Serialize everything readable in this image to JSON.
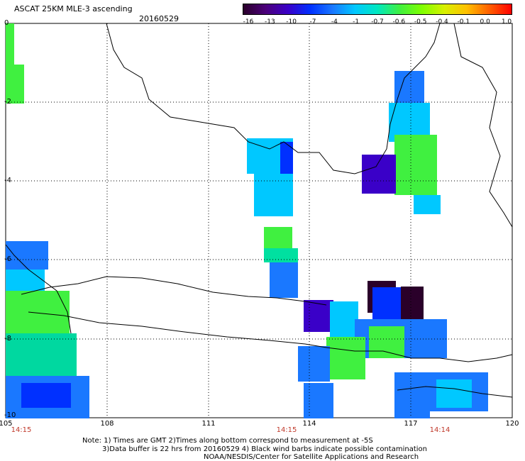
{
  "header": {
    "title": "ASCAT 25KM MLE-3 ascending",
    "date": "20160529"
  },
  "colorbar": {
    "labels": [
      "-16",
      "-13",
      "-10",
      "-7",
      "-4",
      "-1",
      "-0.7",
      "-0.6",
      "-0.5",
      "-0.4",
      "-0.1",
      "0.0",
      "1.0"
    ],
    "colors": [
      "#2a002a",
      "#4b007a",
      "#3a00c8",
      "#0030ff",
      "#1a78ff",
      "#00c8ff",
      "#00e8c0",
      "#40f040",
      "#80ff00",
      "#d8f000",
      "#ffc000",
      "#ff6000",
      "#ff0000"
    ]
  },
  "axes": {
    "lon_labels": [
      "105",
      "108",
      "111",
      "114",
      "117",
      "120"
    ],
    "lat_labels": [
      "0",
      "-2",
      "-4",
      "-6",
      "-8",
      "-10"
    ]
  },
  "time_labels": [
    "14:15",
    "14:15",
    "14:14"
  ],
  "notes": {
    "line1": "Note: 1) Times are GMT 2)Times along bottom correspond to measurement at -5S",
    "line2": "3)Data buffer is 22 hrs from 20160529 4) Black wind barbs indicate possible contamination",
    "line3": "NOAA/NESDIS/Center for Satellite Applications and Research"
  }
}
